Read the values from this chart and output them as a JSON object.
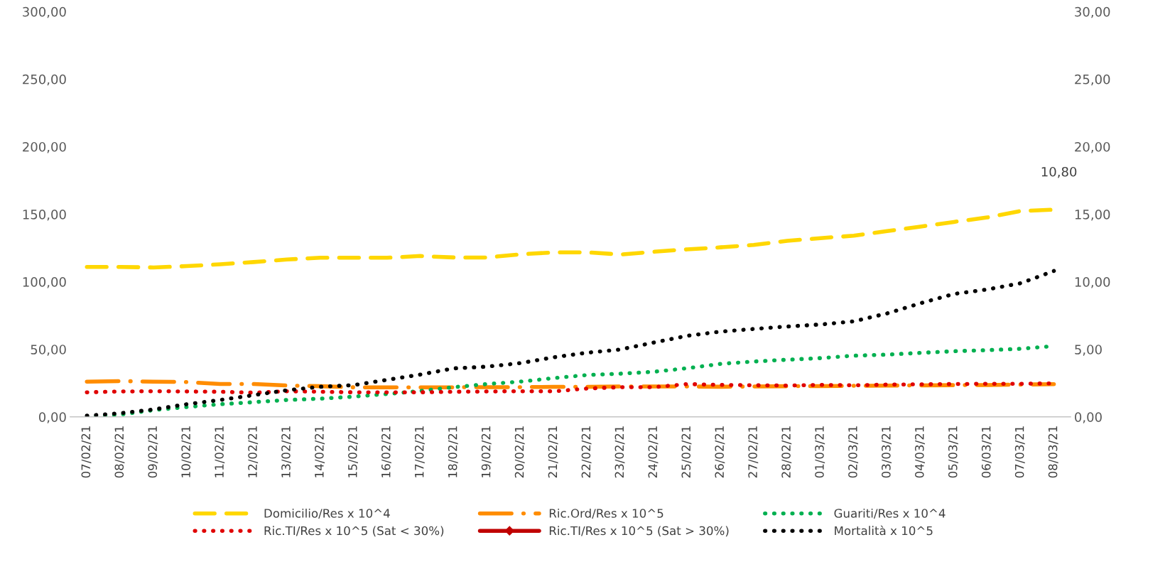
{
  "chart_data": {
    "type": "line",
    "categories": [
      "07/02/21",
      "08/02/21",
      "09/02/21",
      "10/02/21",
      "11/02/21",
      "12/02/21",
      "13/02/21",
      "14/02/21",
      "15/02/21",
      "16/02/21",
      "17/02/21",
      "18/02/21",
      "19/02/21",
      "20/02/21",
      "21/02/21",
      "22/02/21",
      "23/02/21",
      "24/02/21",
      "25/02/21",
      "26/02/21",
      "27/02/21",
      "28/02/21",
      "01/03/21",
      "02/03/21",
      "03/03/21",
      "04/03/21",
      "05/03/21",
      "06/03/21",
      "07/03/21",
      "08/03/21"
    ],
    "series": [
      {
        "name": "Domicilio/Res x 10^4",
        "color": "#ffd700",
        "line_style": "dashed",
        "values": [
          111,
          111,
          110.6,
          111.6,
          113,
          114.6,
          116.5,
          117.8,
          117.8,
          117.8,
          119.1,
          118,
          118,
          120.3,
          121.8,
          121.8,
          120.2,
          122.2,
          124,
          125.5,
          127.3,
          130.3,
          132.3,
          134.1,
          137.5,
          140.8,
          144.3,
          147.6,
          152.4,
          153.4
        ]
      },
      {
        "name": "Ric.Ord/Res x 10^5",
        "color": "#ff8c00",
        "line_style": "dashdot",
        "values": [
          26.1,
          26.5,
          26.1,
          25.8,
          24.3,
          24.3,
          23.2,
          22.7,
          21.9,
          21.9,
          21.9,
          21.9,
          22,
          22,
          22.2,
          22.2,
          22.5,
          22.5,
          22.5,
          22.3,
          22.5,
          22.7,
          22.8,
          23,
          23.2,
          23.3,
          23.5,
          23.6,
          23.9,
          24.2
        ]
      },
      {
        "name": "Guariti/Res x 10^4",
        "color": "#00b050",
        "line_style": "dotted",
        "values": [
          0,
          1.7,
          5,
          7.3,
          9.4,
          10.9,
          12.5,
          13.5,
          15,
          16.9,
          19.2,
          22,
          24.3,
          26.1,
          28.7,
          31,
          32,
          33.4,
          36,
          39.2,
          41,
          42.3,
          43.5,
          45.3,
          46.1,
          47.4,
          48.6,
          49.4,
          50.4,
          52.4
        ]
      },
      {
        "name": "Ric.TI/Res x 10^5 (Sat < 30%)",
        "color": "#e00000",
        "line_style": "dotted",
        "values": [
          18.2,
          18.8,
          19,
          18.8,
          18.6,
          17.9,
          19,
          18.6,
          18.2,
          18.2,
          18.2,
          18.6,
          18.8,
          19,
          18.9,
          21,
          22,
          22,
          24.3,
          23.7,
          23.4,
          23.2,
          23.7,
          23.4,
          23.9,
          24.1,
          24.3,
          24.5,
          24.5,
          24.8
        ]
      },
      {
        "name": "Ric.TI/Res x 10^5 (Sat > 30%)",
        "color": "#c00000",
        "line_style": "solid",
        "marker": "diamond",
        "values": [
          null,
          null,
          null,
          null,
          null,
          null,
          null,
          null,
          null,
          null,
          null,
          null,
          null,
          null,
          null,
          null,
          null,
          null,
          null,
          null,
          null,
          null,
          null,
          null,
          null,
          null,
          null,
          null,
          null,
          null
        ]
      },
      {
        "name": "Mortalità x 10^5",
        "color": "#000000",
        "line_style": "dotted",
        "axis": "y2",
        "values": [
          0.09,
          0.27,
          0.55,
          0.94,
          1.25,
          1.61,
          1.97,
          2.23,
          2.35,
          2.74,
          3.13,
          3.59,
          3.72,
          3.98,
          4.41,
          4.75,
          4.99,
          5.5,
          6.0,
          6.31,
          6.51,
          6.69,
          6.84,
          7.07,
          7.66,
          8.41,
          9.1,
          9.43,
          9.89,
          10.8
        ]
      }
    ],
    "annotations": [
      "10,80"
    ],
    "ylim": [
      0,
      300
    ],
    "yticks": [
      {
        "value": 0,
        "label": "0,00"
      },
      {
        "value": 50,
        "label": "50,00"
      },
      {
        "value": 100,
        "label": "100,00"
      },
      {
        "value": 150,
        "label": "150,00"
      },
      {
        "value": 200,
        "label": "200,00"
      },
      {
        "value": 250,
        "label": "250,00"
      },
      {
        "value": 300,
        "label": "300,00"
      }
    ],
    "y2lim": [
      0,
      30
    ],
    "y2ticks": [
      {
        "value": 0,
        "label": "0,00"
      },
      {
        "value": 5,
        "label": "5,00"
      },
      {
        "value": 10,
        "label": "10,00"
      },
      {
        "value": 15,
        "label": "15,00"
      },
      {
        "value": 20,
        "label": "20,00"
      },
      {
        "value": 25,
        "label": "25,00"
      },
      {
        "value": 30,
        "label": "30,00"
      }
    ],
    "grid": false,
    "legend": "bottom"
  }
}
